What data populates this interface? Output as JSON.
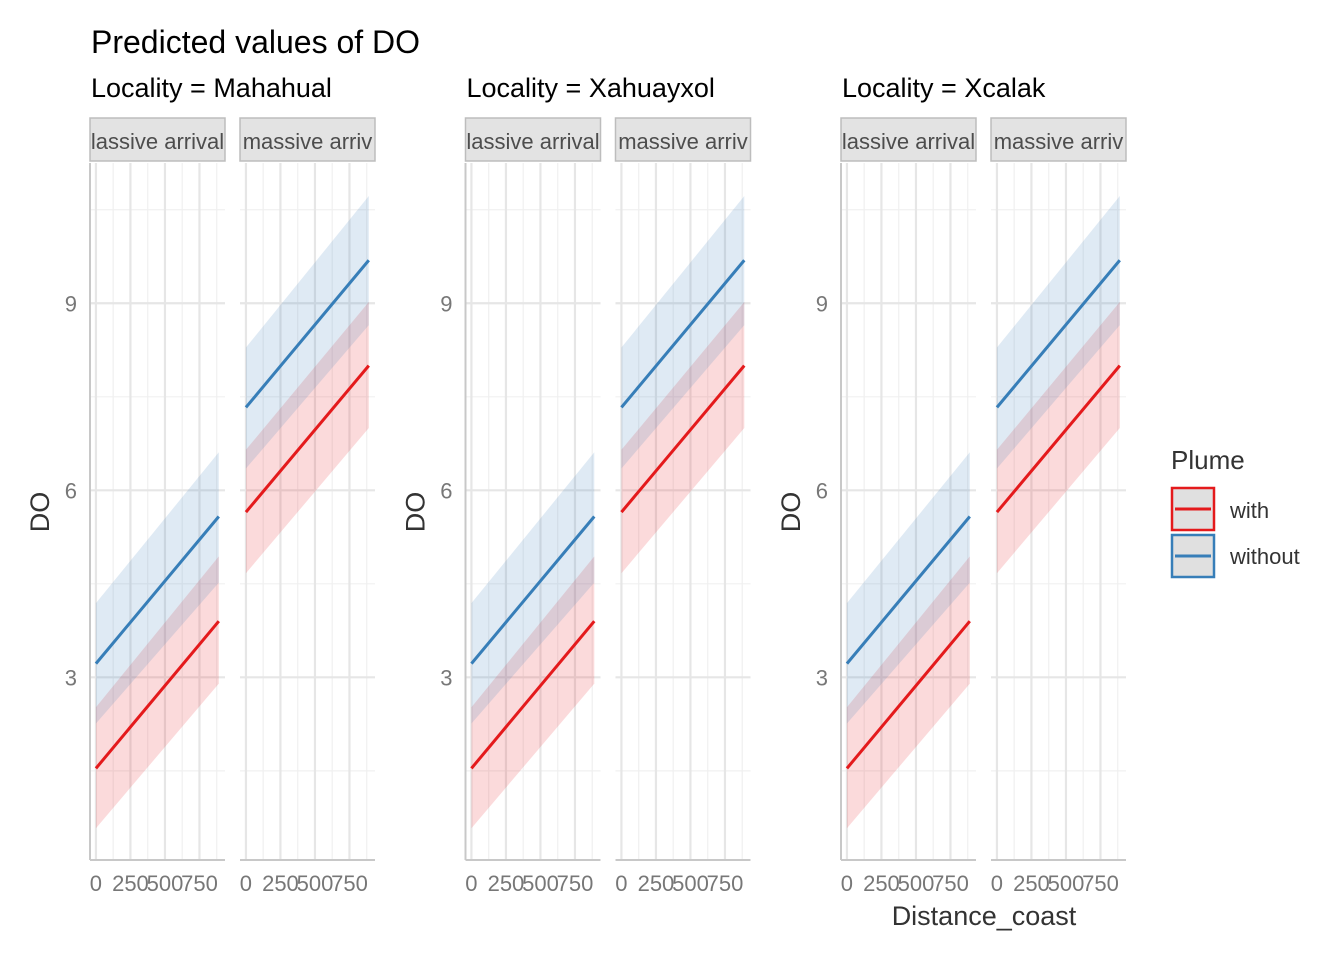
{
  "chart_data": {
    "type": "line",
    "title": "Predicted values of DO",
    "xlabel": "Distance_coast",
    "ylabel": "DO",
    "x_ticks": [
      0,
      250,
      500,
      750
    ],
    "x_tick_labels": [
      "0",
      "250",
      "500",
      "750"
    ],
    "y_ticks": [
      3,
      6,
      9
    ],
    "y_tick_labels": [
      "3",
      "6",
      "9"
    ],
    "xlim": [
      -43,
      935
    ],
    "ylim": [
      0.07,
      11.25
    ],
    "grid": true,
    "legend": {
      "title": "Plume",
      "placement": "right",
      "entries": [
        {
          "label": "with",
          "color": "#E41A1C"
        },
        {
          "label": "without",
          "color": "#377EB8"
        }
      ]
    },
    "localities": [
      {
        "title": "Locality = Mahahual"
      },
      {
        "title": "Locality = Xahuayxol"
      },
      {
        "title": "Locality = Xcalak"
      }
    ],
    "facets": [
      {
        "strip_label": "lassive arrival",
        "series": [
          {
            "name": "with",
            "color": "#E41A1C",
            "x": [
              0,
              890
            ],
            "y": [
              1.54,
              3.9
            ],
            "ci_low": [
              0.58,
              2.9
            ],
            "ci_high": [
              2.52,
              4.94
            ]
          },
          {
            "name": "without",
            "color": "#377EB8",
            "x": [
              0,
              890
            ],
            "y": [
              3.22,
              5.58
            ],
            "ci_low": [
              2.26,
              4.52
            ],
            "ci_high": [
              4.19,
              6.61
            ]
          }
        ]
      },
      {
        "strip_label": "massive arriv",
        "series": [
          {
            "name": "with",
            "color": "#E41A1C",
            "x": [
              0,
              890
            ],
            "y": [
              5.65,
              8.0
            ],
            "ci_low": [
              4.67,
              7.0
            ],
            "ci_high": [
              6.65,
              9.02
            ]
          },
          {
            "name": "without",
            "color": "#377EB8",
            "x": [
              0,
              890
            ],
            "y": [
              7.33,
              9.69
            ],
            "ci_low": [
              6.35,
              8.65
            ],
            "ci_high": [
              8.29,
              10.72
            ]
          }
        ]
      }
    ]
  }
}
